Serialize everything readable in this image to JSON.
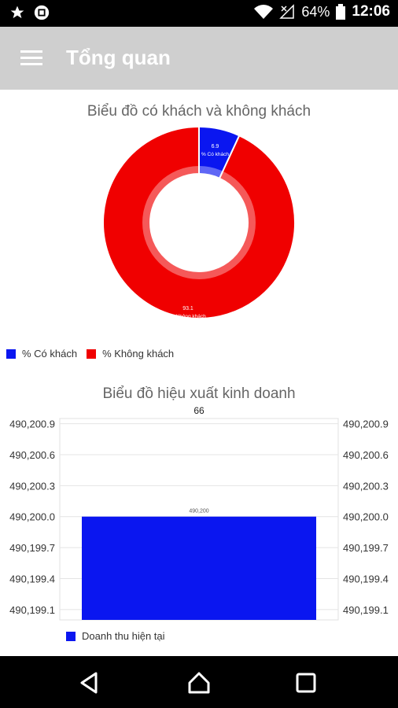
{
  "status_bar": {
    "battery": "64%",
    "time": "12:06",
    "icons": [
      "star-icon",
      "calendar-icon",
      "wifi-icon",
      "no-signal-icon",
      "battery-icon"
    ]
  },
  "app_bar": {
    "title": "Tổng quan",
    "menu_icon": "hamburger-menu-icon"
  },
  "colors": {
    "blue": "#0a16f0",
    "red": "#f00000",
    "appbar": "#cfcfcf"
  },
  "chart_data": [
    {
      "type": "pie",
      "title": "Biểu đồ có khách và không khách",
      "slices": [
        {
          "label": "% Có khách",
          "value": 6.9,
          "value_text": "6.9",
          "slice_label": "% Có khách",
          "color": "#0a16f0"
        },
        {
          "label": "% Không khách",
          "value": 93.1,
          "value_text": "93.1",
          "slice_label": "% Không khách",
          "color": "#f00000"
        }
      ],
      "legend": [
        "% Có khách",
        "% Không khách"
      ],
      "legend_position": "bottom-left"
    },
    {
      "type": "bar",
      "title": "Biểu đồ hiệu xuất kinh doanh",
      "top_label": "66",
      "categories": [
        ""
      ],
      "series": [
        {
          "name": "Doanh thu hiện tại",
          "values": [
            490200
          ],
          "value_text": "490,200",
          "color": "#0a16f0"
        }
      ],
      "ylim": [
        490199.0,
        490200.95
      ],
      "yticks": [
        490199.1,
        490199.4,
        490199.7,
        490200.0,
        490200.3,
        490200.6,
        490200.9
      ],
      "ytick_labels": [
        "490,199.1",
        "490,199.4",
        "490,199.7",
        "490,200.0",
        "490,200.3",
        "490,200.6",
        "490,200.9"
      ],
      "grid": true,
      "legend_position": "bottom-left"
    }
  ]
}
